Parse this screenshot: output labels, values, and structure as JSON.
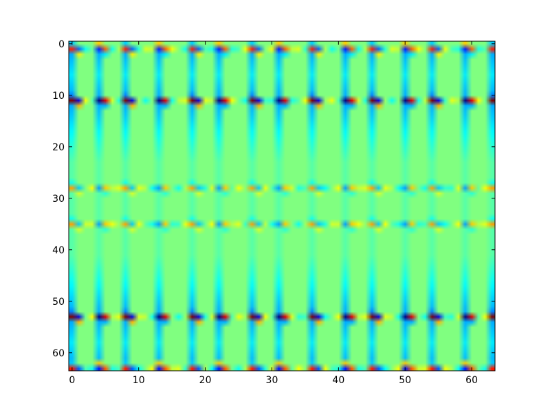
{
  "chart_data": {
    "type": "heatmap",
    "title": "",
    "xlabel": "",
    "ylabel": "",
    "colormap": "jet",
    "shape": [
      64,
      64
    ],
    "xlim": [
      -0.5,
      63.5
    ],
    "ylim": [
      63.5,
      -0.5
    ],
    "y_axis_inverted": true,
    "x_ticks": [
      0,
      10,
      20,
      30,
      40,
      50,
      60
    ],
    "x_tick_labels": [
      "0",
      "10",
      "20",
      "30",
      "40",
      "50",
      "60"
    ],
    "y_ticks": [
      0,
      10,
      20,
      30,
      40,
      50,
      60
    ],
    "y_tick_labels": [
      "0",
      "10",
      "20",
      "30",
      "40",
      "50",
      "60"
    ],
    "background_value": 0.5,
    "active_rows": [
      {
        "row": 1,
        "note": "band of alternating high/low values"
      },
      {
        "row": 11,
        "note": "strong dark-red / dark-blue pairs"
      },
      {
        "row": 28,
        "note": "weaker yellow/blue pairs"
      },
      {
        "row": 35,
        "note": "weaker yellow/blue pairs"
      },
      {
        "row": 53,
        "note": "strong dark-red / dark-blue pairs"
      },
      {
        "row": 63,
        "note": "band of alternating high/low values"
      }
    ],
    "repeating_columns": [
      0,
      4,
      8,
      13,
      18,
      22,
      27,
      31,
      36,
      41,
      45,
      50,
      54,
      59,
      63
    ],
    "grid": false,
    "legend": "none"
  }
}
